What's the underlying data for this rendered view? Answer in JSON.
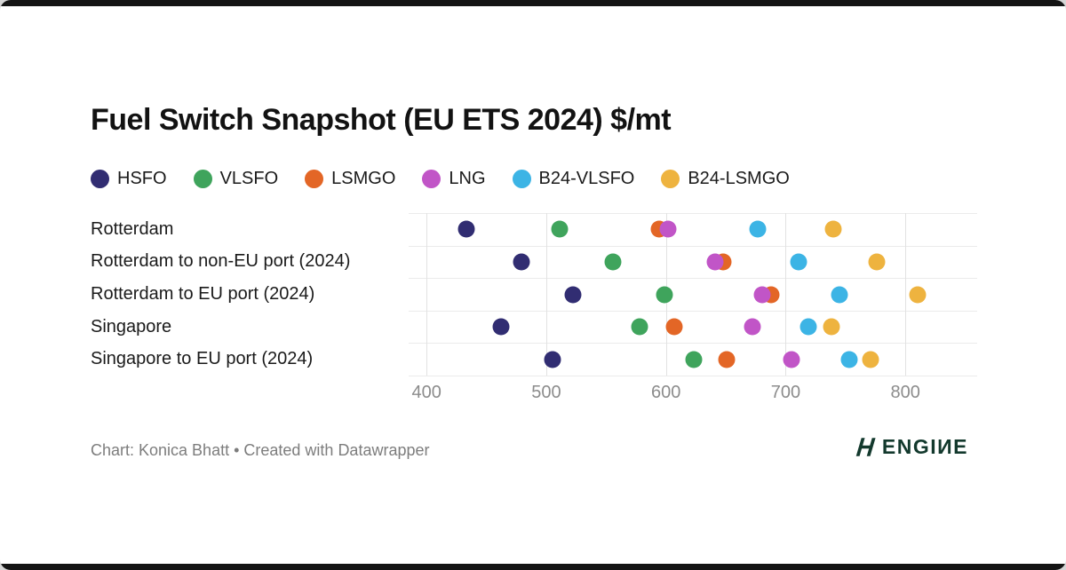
{
  "title": "Fuel Switch Snapshot (EU ETS 2024) $/mt",
  "footer": {
    "credit": "Chart: Konica Bhatt • Created with Datawrapper"
  },
  "logo": {
    "text": "ENGIИE",
    "mark": "engine-double-slash-mark",
    "color": "#13392d"
  },
  "chart_data": {
    "type": "scatter",
    "title": "Fuel Switch Snapshot (EU ETS 2024) $/mt",
    "categories": [
      "Rotterdam",
      "Rotterdam to non-EU port (2024)",
      "Rotterdam to EU port (2024)",
      "Singapore",
      "Singapore to EU port (2024)"
    ],
    "series": [
      {
        "name": "HSFO",
        "color": "#312d72",
        "values": [
          433,
          479,
          522,
          462,
          505
        ]
      },
      {
        "name": "VLSFO",
        "color": "#3fa45c",
        "values": [
          511,
          556,
          599,
          578,
          623
        ]
      },
      {
        "name": "LSMGO",
        "color": "#e36626",
        "values": [
          594,
          648,
          688,
          607,
          651
        ]
      },
      {
        "name": "LNG",
        "color": "#c155c7",
        "values": [
          602,
          641,
          680,
          672,
          705
        ]
      },
      {
        "name": "B24-VLSFO",
        "color": "#3cb4e5",
        "values": [
          677,
          711,
          745,
          719,
          753
        ]
      },
      {
        "name": "B24-LSMGO",
        "color": "#eeb33f",
        "values": [
          740,
          776,
          810,
          738,
          771
        ]
      }
    ],
    "xticks": [
      400,
      500,
      600,
      700,
      800
    ],
    "xlim": [
      385,
      860
    ],
    "xlabel": "$/mt",
    "ylabel": "",
    "grid": "both",
    "legend_position": "top"
  }
}
